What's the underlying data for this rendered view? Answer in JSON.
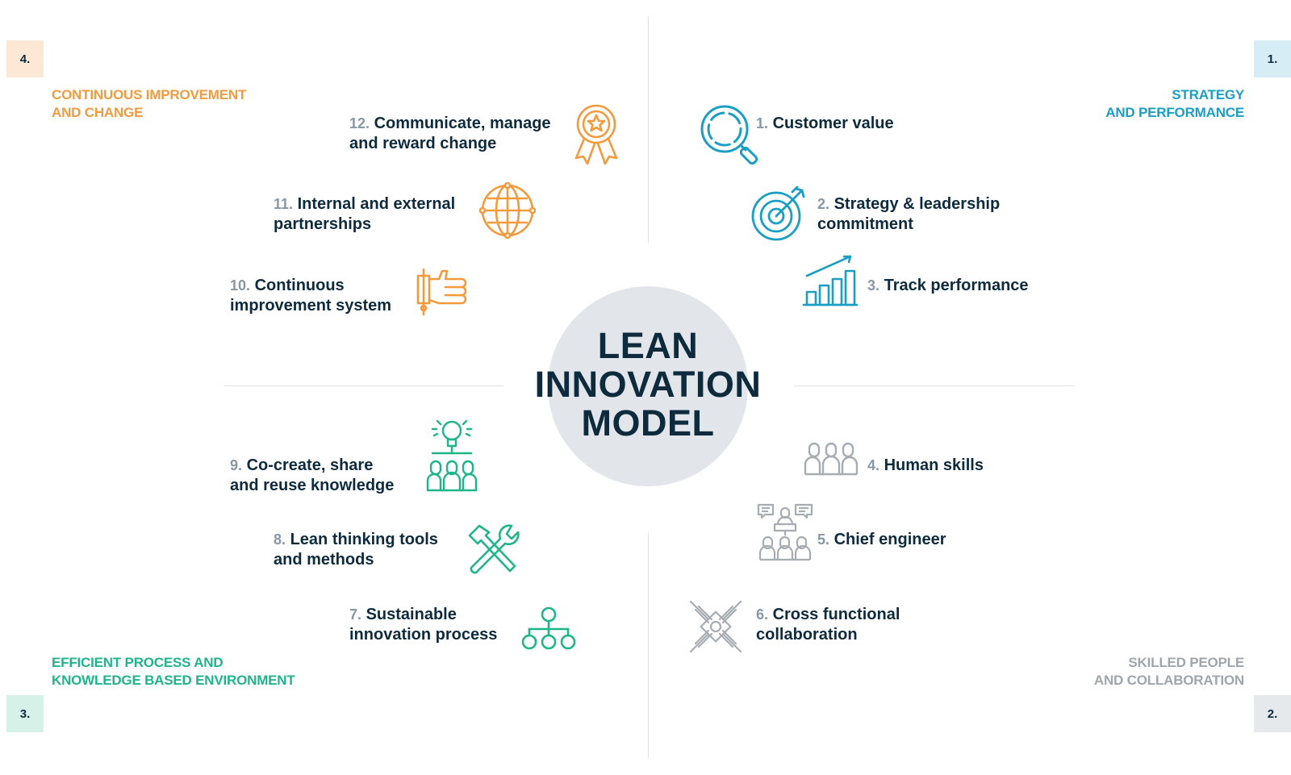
{
  "center": {
    "line1": "LEAN",
    "line2": "INNOVATION",
    "line3": "MODEL"
  },
  "colors": {
    "q1": "#1b9ec3",
    "q2": "#9ea6ac",
    "q3": "#1fb58a",
    "q4": "#f39a3d",
    "dark": "#0e2a3d",
    "num": "#8797a5"
  },
  "quadrants": [
    {
      "badge": "1.",
      "line1": "STRATEGY",
      "line2": "AND PERFORMANCE"
    },
    {
      "badge": "2.",
      "line1": "SKILLED PEOPLE",
      "line2": "AND COLLABORATION"
    },
    {
      "badge": "3.",
      "line1": "EFFICIENT PROCESS AND",
      "line2": "KNOWLEDGE BASED ENVIRONMENT"
    },
    {
      "badge": "4.",
      "line1": "CONTINUOUS IMPROVEMENT",
      "line2": "AND CHANGE"
    }
  ],
  "items": [
    {
      "num": "1.",
      "line1": "Customer value",
      "line2": "",
      "icon": "magnifier-icon"
    },
    {
      "num": "2.",
      "line1": "Strategy & leadership",
      "line2": "commitment",
      "icon": "target-icon"
    },
    {
      "num": "3.",
      "line1": "Track performance",
      "line2": "",
      "icon": "bar-chart-icon"
    },
    {
      "num": "4.",
      "line1": "Human skills",
      "line2": "",
      "icon": "people-group-icon"
    },
    {
      "num": "5.",
      "line1": "Chief engineer",
      "line2": "",
      "icon": "presenter-icon"
    },
    {
      "num": "6.",
      "line1": "Cross functional",
      "line2": "collaboration",
      "icon": "joined-hands-icon"
    },
    {
      "num": "7.",
      "line1": "Sustainable",
      "line2": "innovation process",
      "icon": "process-tree-icon"
    },
    {
      "num": "8.",
      "line1": "Lean thinking tools",
      "line2": "and methods",
      "icon": "hammer-wrench-icon"
    },
    {
      "num": "9.",
      "line1": "Co-create, share",
      "line2": "and reuse knowledge",
      "icon": "idea-team-icon"
    },
    {
      "num": "10.",
      "line1": "Continuous",
      "line2": "improvement system",
      "icon": "thumbs-up-icon"
    },
    {
      "num": "11.",
      "line1": "Internal and external",
      "line2": "partnerships",
      "icon": "globe-icon"
    },
    {
      "num": "12.",
      "line1": "Communicate, manage",
      "line2": "and reward change",
      "icon": "award-ribbon-icon"
    }
  ]
}
